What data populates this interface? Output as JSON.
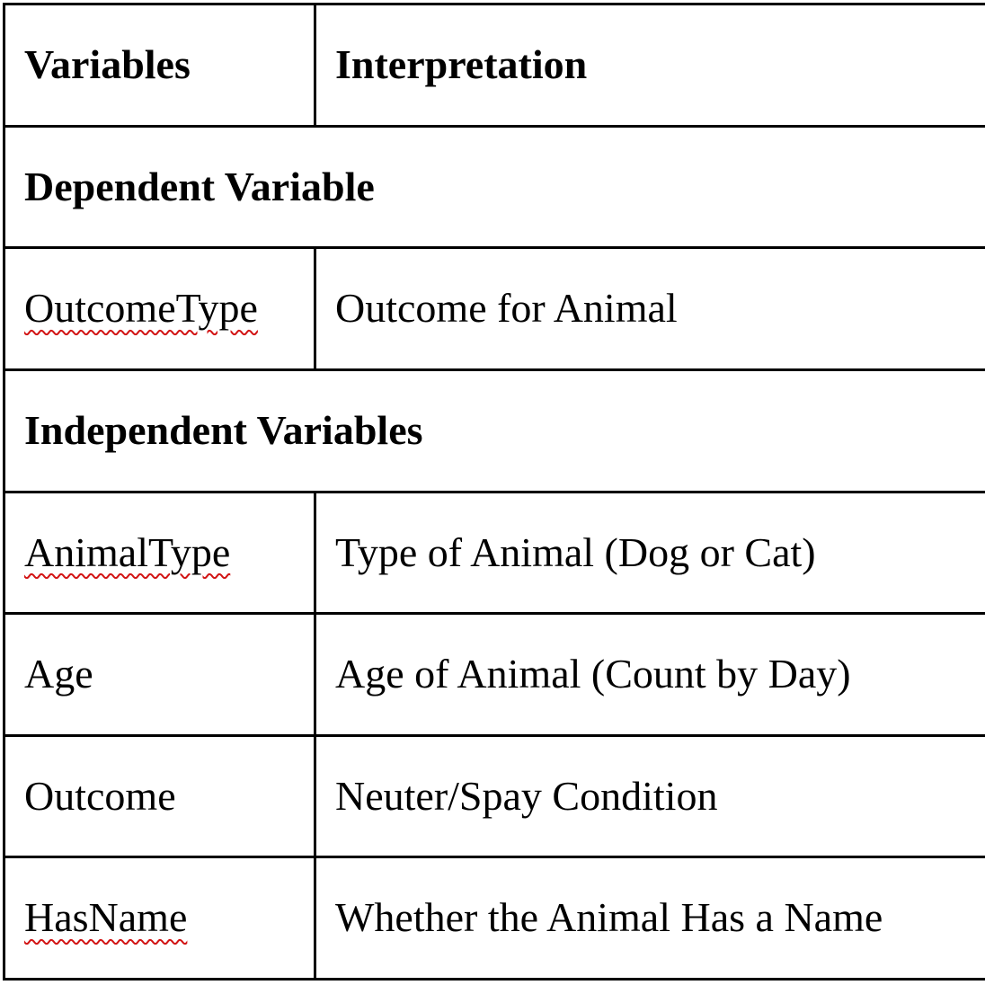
{
  "table": {
    "header": {
      "variables": "Variables",
      "interpretation": "Interpretation"
    },
    "sections": [
      {
        "title": "Dependent Variable",
        "rows": [
          {
            "variable": "OutcomeType",
            "interpretation": "Outcome for Animal",
            "spell_flagged": true
          }
        ]
      },
      {
        "title": "Independent Variables",
        "rows": [
          {
            "variable": "AnimalType",
            "interpretation": "Type of Animal (Dog or Cat)",
            "spell_flagged": true
          },
          {
            "variable": "Age",
            "interpretation": "Age of Animal (Count by Day)",
            "spell_flagged": false
          },
          {
            "variable": "Outcome",
            "interpretation": "Neuter/Spay Condition",
            "spell_flagged": false
          },
          {
            "variable": "HasName",
            "interpretation": "Whether the Animal Has a Name",
            "spell_flagged": true
          }
        ]
      }
    ]
  },
  "colors": {
    "border": "#000000",
    "text": "#000000",
    "spellcheck_underline": "#d21414",
    "background": "#ffffff"
  }
}
